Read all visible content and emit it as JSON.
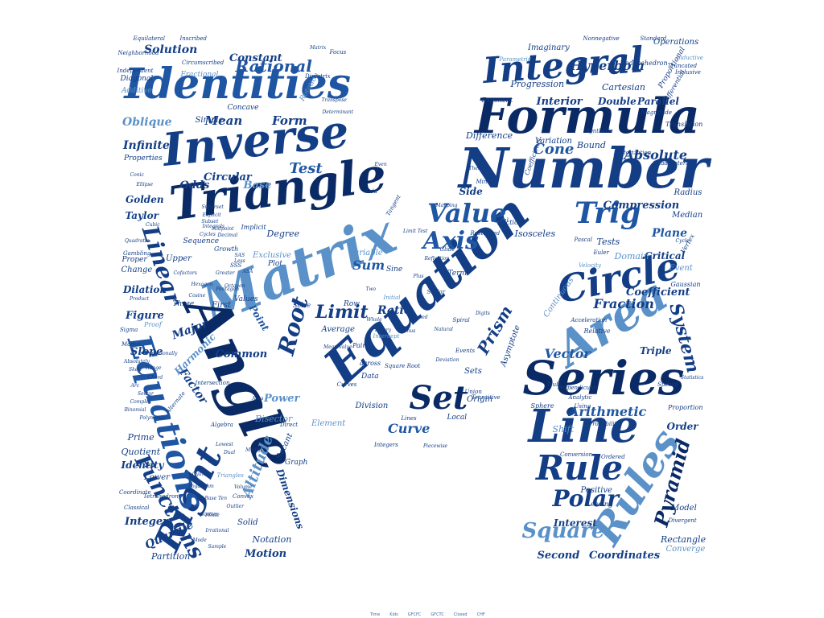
{
  "palette": [
    "#0a2a66",
    "#133e86",
    "#1f56a3",
    "#2e6cb5",
    "#5a91c9",
    "#7fb0dc"
  ],
  "words": {
    "w1": "Matrix",
    "w2": "Equation",
    "w3": "Angle",
    "w4": "Number",
    "w5": "Triangle",
    "w6": "Inverse",
    "w7": "Identities",
    "w8": "Formula",
    "w9": "Integral",
    "w10": "Series",
    "w11": "Line",
    "w12": "Rules",
    "w13": "Area",
    "w14": "Circle",
    "w15": "Right",
    "w16": "Equations",
    "w17": "Rule",
    "w18": "Set",
    "w19": "Value",
    "w20": "Trig",
    "w21": "Axis",
    "w22": "Root",
    "w23": "Linear",
    "w24": "Functions",
    "w25": "Polar",
    "w26": "Square",
    "w27": "Pyramid",
    "w28": "System",
    "w29": "Limit",
    "w30": "Prism",
    "w31": "Rational",
    "w32": "Hyperbola",
    "w33": "Test",
    "w34": "Cone",
    "w35": "Absolute",
    "w36": "Mean",
    "w37": "Form",
    "w38": "Sum",
    "w39": "Fraction",
    "w40": "Vector",
    "w41": "Arithmetic",
    "w42": "Curve",
    "w43": "Altitude",
    "w44": "Factor",
    "w45": "Oblique",
    "w46": "Infinite",
    "w47": "Circular",
    "w48": "Base",
    "w49": "Odds",
    "w50": "Golden",
    "w51": "Taylor",
    "w52": "Degree",
    "w53": "Point",
    "w54": "Ratio",
    "w55": "Power",
    "w56": "Quartile",
    "w57": "Integer",
    "w58": "Figure",
    "w59": "Slope",
    "w60": "Solution",
    "w61": "Constant",
    "w62": "Interior",
    "w63": "Double",
    "w64": "Parallel",
    "w65": "Plane",
    "w66": "Compression",
    "w67": "Coordinates",
    "w68": "Second",
    "w69": "Interest",
    "w70": "Triple",
    "w71": "Coefficient",
    "w72": "Critical",
    "w73": "Tests",
    "w74": "Domain",
    "w75": "Event",
    "w76": "Model",
    "w77": "Rectangle",
    "w78": "Converge",
    "w79": "Order",
    "w80": "Shift",
    "w81": "Motion",
    "w82": "Notation",
    "w83": "Dimensions",
    "w84": "Partition",
    "w85": "Identity",
    "w86": "Quotient",
    "w87": "Prime",
    "w88": "Major",
    "w89": "Harmonic",
    "w90": "Dilation",
    "w91": "Change",
    "w92": "Upper",
    "w93": "Common",
    "w94": "Bisector",
    "w95": "Division",
    "w96": "Sets",
    "w97": "Origin",
    "w98": "Side",
    "w99": "Bound",
    "w100": "Variation",
    "w101": "Difference",
    "w102": "Progression",
    "w103": "Cartesian",
    "w104": "Imaginary",
    "w105": "Operations",
    "w106": "Standard",
    "w107": "Radius",
    "w108": "Median",
    "w109": "Exclusive",
    "w110": "Plot",
    "w111": "Variable",
    "w112": "Element",
    "w113": "Solid",
    "w114": "Lower",
    "w115": "Sequence",
    "w116": "First",
    "w117": "Graph",
    "w118": "Three",
    "w119": "Average",
    "w120": "Row",
    "w121": "Data",
    "w122": "Local",
    "w123": "Term",
    "w124": "Sine",
    "w125": "Simple",
    "w126": "Properties",
    "w127": "Diagonal",
    "w128": "Additive",
    "w129": "Fractional",
    "w130": "Independent",
    "w131": "Inscribed",
    "w132": "Circumscribed",
    "w133": "Concave",
    "w134": "Isosceles",
    "w135": "Continuous",
    "w136": "Relative",
    "w137": "Asymptote",
    "w138": "Acceleration",
    "w139": "Null",
    "w140": "Perpendicular",
    "w141": "Special",
    "w142": "Gaussian",
    "w143": "Divergent",
    "w144": "Dodecahedron",
    "w145": "Truncated",
    "w146": "Proportional",
    "w147": "Differential",
    "w148": "Translation",
    "w149": "Sections",
    "w150": "Real",
    "w151": "Minor",
    "w152": "Theorem",
    "w153": "Velocity",
    "w154": "Positive",
    "w155": "Vertex",
    "w156": "Cycle",
    "w157": "Statistics",
    "w158": "Sphere",
    "w159": "Analytic",
    "w160": "Probability",
    "w161": "Conversion",
    "w162": "Leading",
    "w163": "Using",
    "w164": "Ordered",
    "w165": "Inductive",
    "w166": "Rotation",
    "w167": "Secant",
    "w168": "Convex",
    "w169": "Classical",
    "w170": "Tetrahedron",
    "w171": "Coordinate",
    "w172": "Alternate",
    "w173": "Integers",
    "w174": "Union",
    "w175": "Lines",
    "w176": "Curves",
    "w177": "Initial",
    "w178": "Tangent",
    "w179": "Events",
    "w180": "Growth",
    "w181": "Values",
    "w182": "Solve",
    "w183": "Exponent",
    "w184": "Factorization",
    "w185": "Quadrilateral",
    "w186": "Coefficients",
    "w187": "Synthetic",
    "w188": "Nonnegative",
    "w189": "Inclusive",
    "w190": "Proportion",
    "w191": "Equilateral",
    "w192": "Neighborhood",
    "w193": "Parametric",
    "w194": "Magnitude",
    "w195": "Scalar",
    "w196": "Intercept",
    "w197": "Pair",
    "w198": "Digits",
    "w199": "Spiral",
    "w200": "Direct",
    "w201": "across",
    "w202": "Square Root",
    "w203": "Mean Value",
    "w204": "Deviation",
    "w205": "Intersection",
    "w206": "Algebra",
    "w207": "Lowest",
    "w208": "Dual",
    "w209": "Triangles",
    "w210": "Multiple",
    "w211": "Axes",
    "w212": "Cylinder",
    "w213": "Logarithm",
    "w214": "Base Ten",
    "w215": "Finite",
    "w216": "Irrational",
    "w217": "Volume",
    "w218": "Sample",
    "w219": "Mode",
    "w220": "Range",
    "w221": "Skew",
    "w222": "Chord",
    "w223": "Arc",
    "w224": "Sector",
    "w225": "Complex",
    "w226": "Binomial",
    "w227": "Polynomial",
    "w228": "Product",
    "w229": "Quadratic",
    "w230": "Cubic",
    "w231": "Conic",
    "w232": "Ellipse",
    "w233": "Focus",
    "w234": "Directrix",
    "w235": "Matrix",
    "w236": "Transpose",
    "w237": "Determinant",
    "w238": "Scatter",
    "w239": "Outlier",
    "w240": "Odd",
    "w241": "Even",
    "w242": "Glide",
    "w243": "Reflection",
    "w244": "Transitive",
    "w245": "Restricted",
    "w246": "Piecewise",
    "w247": "Implicit",
    "w248": "Explicit",
    "w249": "Gambling",
    "w250": "Proper",
    "w251": "Sigma",
    "w252": "Modus",
    "w253": "Proof",
    "w254": "Absolutely",
    "w255": "Conditionally",
    "w256": "Greater",
    "w257": "Less",
    "w258": "Decimal",
    "w259": "Midpoint",
    "w260": "Cosine",
    "w261": "Euler",
    "w262": "Pascal",
    "w263": "Cofactors",
    "w264": "Hexagon",
    "w265": "Octagon",
    "w266": "Pentagon",
    "w267": "Subset",
    "w268": "Superset",
    "w269": "Integrals",
    "w270": "Cycles",
    "w271": "SSS",
    "w272": "SAS",
    "w273": "ASA",
    "w274": "Two",
    "w275": "Plus",
    "w276": "Minus",
    "w277": "Signed",
    "w278": "Whole",
    "w279": "Natural",
    "w280": "Binary",
    "w281": "Mapping",
    "w282": "Limit Test"
  },
  "footer": {
    "items": [
      "Time",
      "Kids",
      "GFCFC",
      "GFCTC",
      "Closed",
      "CHF"
    ]
  }
}
